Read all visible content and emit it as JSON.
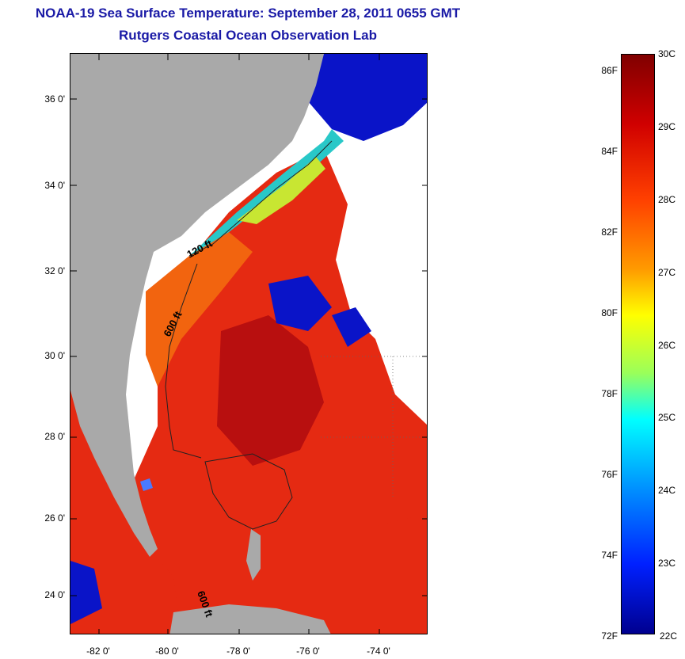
{
  "title": {
    "line1": "NOAA-19 Sea Surface Temperature:  September 28, 2011 0655 GMT",
    "line2": "Rutgers Coastal Ocean Observation Lab"
  },
  "map": {
    "lat_ticks": [
      "36 0'",
      "34 0'",
      "32 0'",
      "30 0'",
      "28 0'",
      "26 0'",
      "24 0'"
    ],
    "lon_ticks": [
      "-82 0'",
      "-80 0'",
      "-78 0'",
      "-76 0'",
      "-74 0'"
    ],
    "isobath_labels": [
      "120 ft",
      "600 ft",
      "600 ft"
    ],
    "colors": {
      "land": "#a9a9a9",
      "cloud": "#ffffff",
      "warm": "#e52a12",
      "hot": "#b80f0f",
      "orange": "#f2640f",
      "cold": "#0a14c8",
      "cool": "#29c8c8",
      "mid": "#c8e632"
    }
  },
  "colorbar": {
    "fahrenheit": [
      "86F",
      "84F",
      "82F",
      "80F",
      "78F",
      "76F",
      "74F",
      "72F"
    ],
    "celsius": [
      "30C",
      "29C",
      "28C",
      "27C",
      "26C",
      "25C",
      "24C",
      "23C",
      "22C"
    ]
  }
}
